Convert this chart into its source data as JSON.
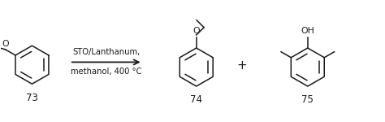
{
  "bg_color": "#ffffff",
  "line_color": "#1a1a1a",
  "arrow_label_line1": "STO/Lanthanum,",
  "arrow_label_line2": "methanol, 400 °C",
  "compound_73_label": "73",
  "compound_74_label": "74",
  "compound_75_label": "75",
  "plus_sign": "+",
  "figsize": [
    4.74,
    1.5
  ],
  "dpi": 100,
  "font_size_arrow": 7.2,
  "font_size_compound": 8.5,
  "font_size_atom": 7.8
}
